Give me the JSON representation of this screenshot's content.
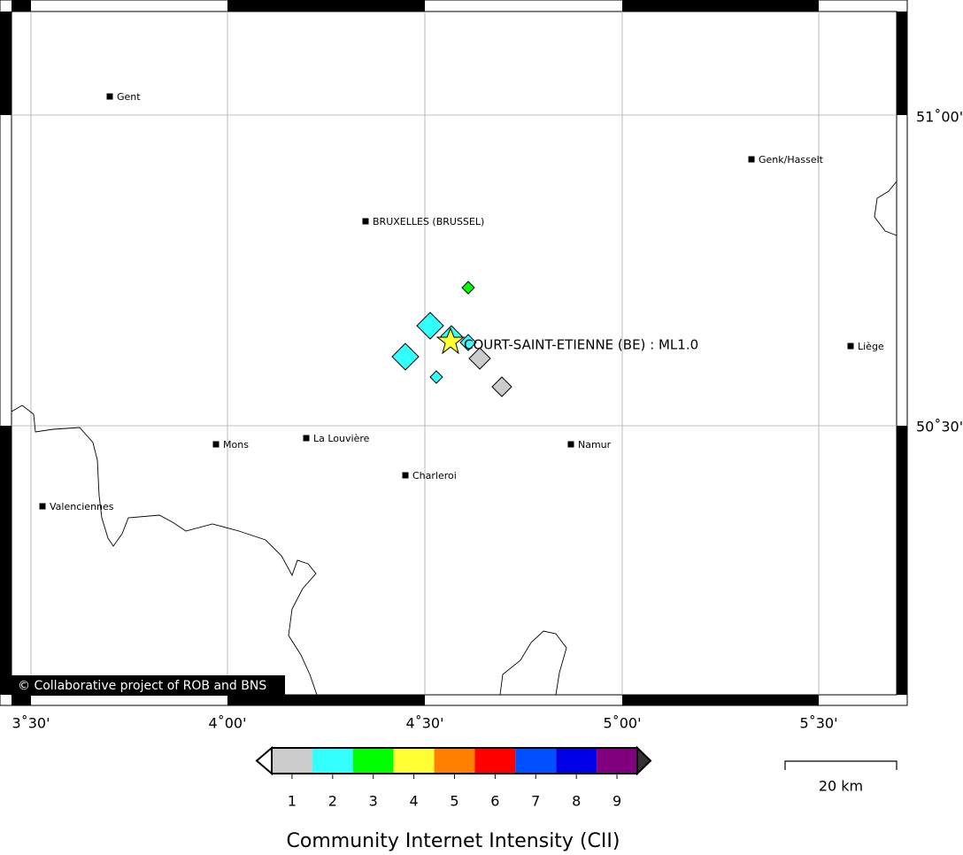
{
  "map": {
    "lon_ticks": [
      "3˚30'",
      "4˚00'",
      "4˚30'",
      "5˚00'",
      "5˚30'"
    ],
    "lat_ticks": [
      "51˚00'",
      "50˚30'"
    ],
    "cities": [
      "Gent",
      "Genk/Hasselt",
      "BRUXELLES (BRUSSEL)",
      "Liège",
      "Mons",
      "La Louvière",
      "Namur",
      "Charleroi",
      "Valenciennes"
    ],
    "event_label": "COURT-SAINT-ETIENNE (BE) : ML1.0",
    "intensity_reports": [
      3,
      2,
      2,
      2,
      2,
      1,
      1,
      2
    ],
    "copyright": "© Collaborative project of ROB and BNS"
  },
  "legend": {
    "title": "Community Internet Intensity (CII)",
    "classes": [
      {
        "value": 1,
        "color": "#cccccc"
      },
      {
        "value": 2,
        "color": "#33ffff"
      },
      {
        "value": 3,
        "color": "#00ff00"
      },
      {
        "value": 4,
        "color": "#ffff33"
      },
      {
        "value": 5,
        "color": "#ff8000"
      },
      {
        "value": 6,
        "color": "#ff0000"
      },
      {
        "value": 7,
        "color": "#0050ff"
      },
      {
        "value": 8,
        "color": "#0000e6"
      },
      {
        "value": 9,
        "color": "#800080"
      }
    ]
  },
  "scale_bar": "20 km"
}
